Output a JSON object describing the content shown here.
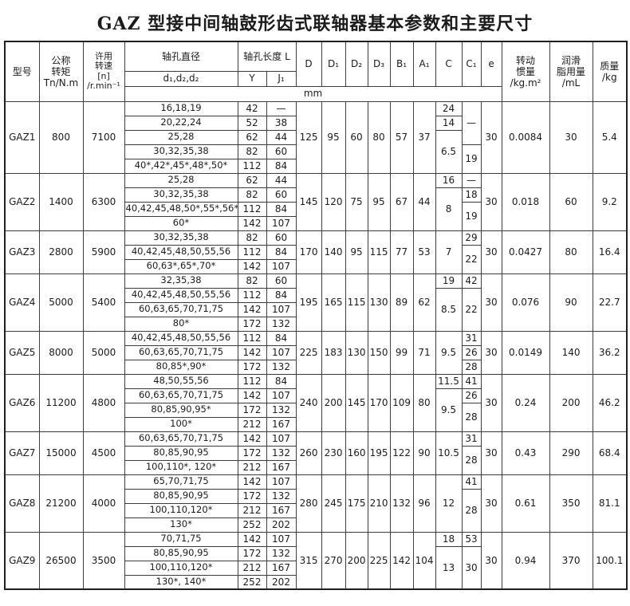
{
  "title": "GAZ 型接中间轴鼓形齿式联轴器基本参数和主要尺寸",
  "header": {
    "model": "型号",
    "torque": "公称\n转矩\nTn/N.m",
    "speed": "许用\n转速\n[n]\n/r.min⁻¹",
    "bore_dia": "轴孔直径",
    "bore_sub": "d₁,d₂,d₂",
    "bore_len": "轴孔长度 L",
    "y": "Y",
    "j": "J₁",
    "dims": [
      "D",
      "D₁",
      "D₂",
      "D₃",
      "B₁",
      "A₁",
      "C",
      "C₁",
      "e"
    ],
    "unit": "mm",
    "inertia": "转动\n惯量\n/kg.m²",
    "grease": "润滑\n脂用量\n/mL",
    "mass": "质量\n/kg"
  },
  "groups": [
    {
      "model": "GAZ1",
      "torque": "800",
      "speed": "7100",
      "rows": [
        {
          "bore": "16,18,19",
          "y": "42",
          "j": "—"
        },
        {
          "bore": "20,22,24",
          "y": "52",
          "j": "38"
        },
        {
          "bore": "25,28",
          "y": "62",
          "j": "44"
        },
        {
          "bore": "30,32,35,38",
          "y": "82",
          "j": "60"
        },
        {
          "bore": "40*,42*,45*,48*,50*",
          "y": "112",
          "j": "84"
        }
      ],
      "dims": [
        "125",
        "95",
        "60",
        "80",
        "57",
        "37"
      ],
      "c": [
        {
          "v": "24",
          "s": 1
        },
        {
          "v": "14",
          "s": 1
        },
        {
          "v": "6.5",
          "s": 3
        }
      ],
      "c1": [
        {
          "v": "—",
          "s": 3
        },
        {
          "v": "19",
          "s": 2
        }
      ],
      "e": "30",
      "inertia": "0.0084",
      "grease": "30",
      "mass": "5.4"
    },
    {
      "model": "GAZ2",
      "torque": "1400",
      "speed": "6300",
      "rows": [
        {
          "bore": "25,28",
          "y": "62",
          "j": "44"
        },
        {
          "bore": "30,32,35,38",
          "y": "82",
          "j": "60"
        },
        {
          "bore": "40,42,45,48,50*,55*,56*",
          "y": "112",
          "j": "84"
        },
        {
          "bore": "60*",
          "y": "142",
          "j": "107"
        }
      ],
      "dims": [
        "145",
        "120",
        "75",
        "95",
        "67",
        "44"
      ],
      "c": [
        {
          "v": "16",
          "s": 1
        },
        {
          "v": "8",
          "s": 3
        }
      ],
      "c1": [
        {
          "v": "—",
          "s": 1
        },
        {
          "v": "18",
          "s": 1
        },
        {
          "v": "19",
          "s": 2
        }
      ],
      "e": "30",
      "inertia": "0.018",
      "grease": "60",
      "mass": "9.2"
    },
    {
      "model": "GAZ3",
      "torque": "2800",
      "speed": "5900",
      "rows": [
        {
          "bore": "30,32,35,38",
          "y": "82",
          "j": "60"
        },
        {
          "bore": "40,42,45,48,50,55,56",
          "y": "112",
          "j": "84"
        },
        {
          "bore": "60,63*,65*,70*",
          "y": "142",
          "j": "107"
        }
      ],
      "dims": [
        "170",
        "140",
        "95",
        "115",
        "77",
        "53"
      ],
      "c": [
        {
          "v": "7",
          "s": 3
        }
      ],
      "c1": [
        {
          "v": "29",
          "s": 1
        },
        {
          "v": "22",
          "s": 2
        }
      ],
      "e": "30",
      "inertia": "0.0427",
      "grease": "80",
      "mass": "16.4"
    },
    {
      "model": "GAZ4",
      "torque": "5000",
      "speed": "5400",
      "rows": [
        {
          "bore": "32,35,38",
          "y": "82",
          "j": "60"
        },
        {
          "bore": "40,42,45,48,50,55,56",
          "y": "112",
          "j": "84"
        },
        {
          "bore": "60,63,65,70,71,75",
          "y": "142",
          "j": "107"
        },
        {
          "bore": "80*",
          "y": "172",
          "j": "132"
        }
      ],
      "dims": [
        "195",
        "165",
        "115",
        "130",
        "89",
        "62"
      ],
      "c": [
        {
          "v": "19",
          "s": 1
        },
        {
          "v": "8.5",
          "s": 3
        }
      ],
      "c1": [
        {
          "v": "42",
          "s": 1
        },
        {
          "v": "22",
          "s": 3
        }
      ],
      "e": "30",
      "inertia": "0.076",
      "grease": "90",
      "mass": "22.7"
    },
    {
      "model": "GAZ5",
      "torque": "8000",
      "speed": "5000",
      "rows": [
        {
          "bore": "40,42,45,48,50,55,56",
          "y": "112",
          "j": "84"
        },
        {
          "bore": "60,63,65,70,71,75",
          "y": "142",
          "j": "107"
        },
        {
          "bore": "80,85*,90*",
          "y": "172",
          "j": "132"
        }
      ],
      "dims": [
        "225",
        "183",
        "130",
        "150",
        "99",
        "71"
      ],
      "c": [
        {
          "v": "9.5",
          "s": 3
        }
      ],
      "c1": [
        {
          "v": "31",
          "s": 1
        },
        {
          "v": "26",
          "s": 1
        },
        {
          "v": "28",
          "s": 1
        }
      ],
      "e": "30",
      "inertia": "0.0149",
      "grease": "140",
      "mass": "36.2"
    },
    {
      "model": "GAZ6",
      "torque": "11200",
      "speed": "4800",
      "rows": [
        {
          "bore": "48,50,55,56",
          "y": "112",
          "j": "84"
        },
        {
          "bore": "60,63,65,70,71,75",
          "y": "142",
          "j": "107"
        },
        {
          "bore": "80,85,90,95*",
          "y": "172",
          "j": "132"
        },
        {
          "bore": "100*",
          "y": "212",
          "j": "167"
        }
      ],
      "dims": [
        "240",
        "200",
        "145",
        "170",
        "109",
        "80"
      ],
      "c": [
        {
          "v": "11.5",
          "s": 1
        },
        {
          "v": "9.5",
          "s": 3
        }
      ],
      "c1": [
        {
          "v": "41",
          "s": 1
        },
        {
          "v": "26",
          "s": 1
        },
        {
          "v": "28",
          "s": 2
        }
      ],
      "e": "30",
      "inertia": "0.24",
      "grease": "200",
      "mass": "46.2"
    },
    {
      "model": "GAZ7",
      "torque": "15000",
      "speed": "4500",
      "rows": [
        {
          "bore": "60,63,65,70,71,75",
          "y": "142",
          "j": "107"
        },
        {
          "bore": "80,85,90,95",
          "y": "172",
          "j": "132"
        },
        {
          "bore": "100,110*, 120*",
          "y": "212",
          "j": "167"
        }
      ],
      "dims": [
        "260",
        "230",
        "160",
        "195",
        "122",
        "90"
      ],
      "c": [
        {
          "v": "10.5",
          "s": 3
        }
      ],
      "c1": [
        {
          "v": "31",
          "s": 1
        },
        {
          "v": "28",
          "s": 2
        }
      ],
      "e": "30",
      "inertia": "0.43",
      "grease": "290",
      "mass": "68.4"
    },
    {
      "model": "GAZ8",
      "torque": "21200",
      "speed": "4000",
      "rows": [
        {
          "bore": "65,70,71,75",
          "y": "142",
          "j": "107"
        },
        {
          "bore": "80,85,90,95",
          "y": "172",
          "j": "132"
        },
        {
          "bore": "100,110,120*",
          "y": "212",
          "j": "167"
        },
        {
          "bore": "130*",
          "y": "252",
          "j": "202"
        }
      ],
      "dims": [
        "280",
        "245",
        "175",
        "210",
        "132",
        "96"
      ],
      "c": [
        {
          "v": "12",
          "s": 4
        }
      ],
      "c1": [
        {
          "v": "41",
          "s": 1
        },
        {
          "v": "28",
          "s": 3
        }
      ],
      "e": "30",
      "inertia": "0.61",
      "grease": "350",
      "mass": "81.1"
    },
    {
      "model": "GAZ9",
      "torque": "26500",
      "speed": "3500",
      "rows": [
        {
          "bore": "70,71,75",
          "y": "142",
          "j": "107"
        },
        {
          "bore": "80,85,90,95",
          "y": "172",
          "j": "132"
        },
        {
          "bore": "100,110,120*",
          "y": "212",
          "j": "167"
        },
        {
          "bore": "130*, 140*",
          "y": "252",
          "j": "202"
        }
      ],
      "dims": [
        "315",
        "270",
        "200",
        "225",
        "142",
        "104"
      ],
      "c": [
        {
          "v": "18",
          "s": 1
        },
        {
          "v": "13",
          "s": 3
        }
      ],
      "c1": [
        {
          "v": "53",
          "s": 1
        },
        {
          "v": "30",
          "s": 3
        }
      ],
      "e": "30",
      "inertia": "0.94",
      "grease": "370",
      "mass": "100.1"
    }
  ]
}
